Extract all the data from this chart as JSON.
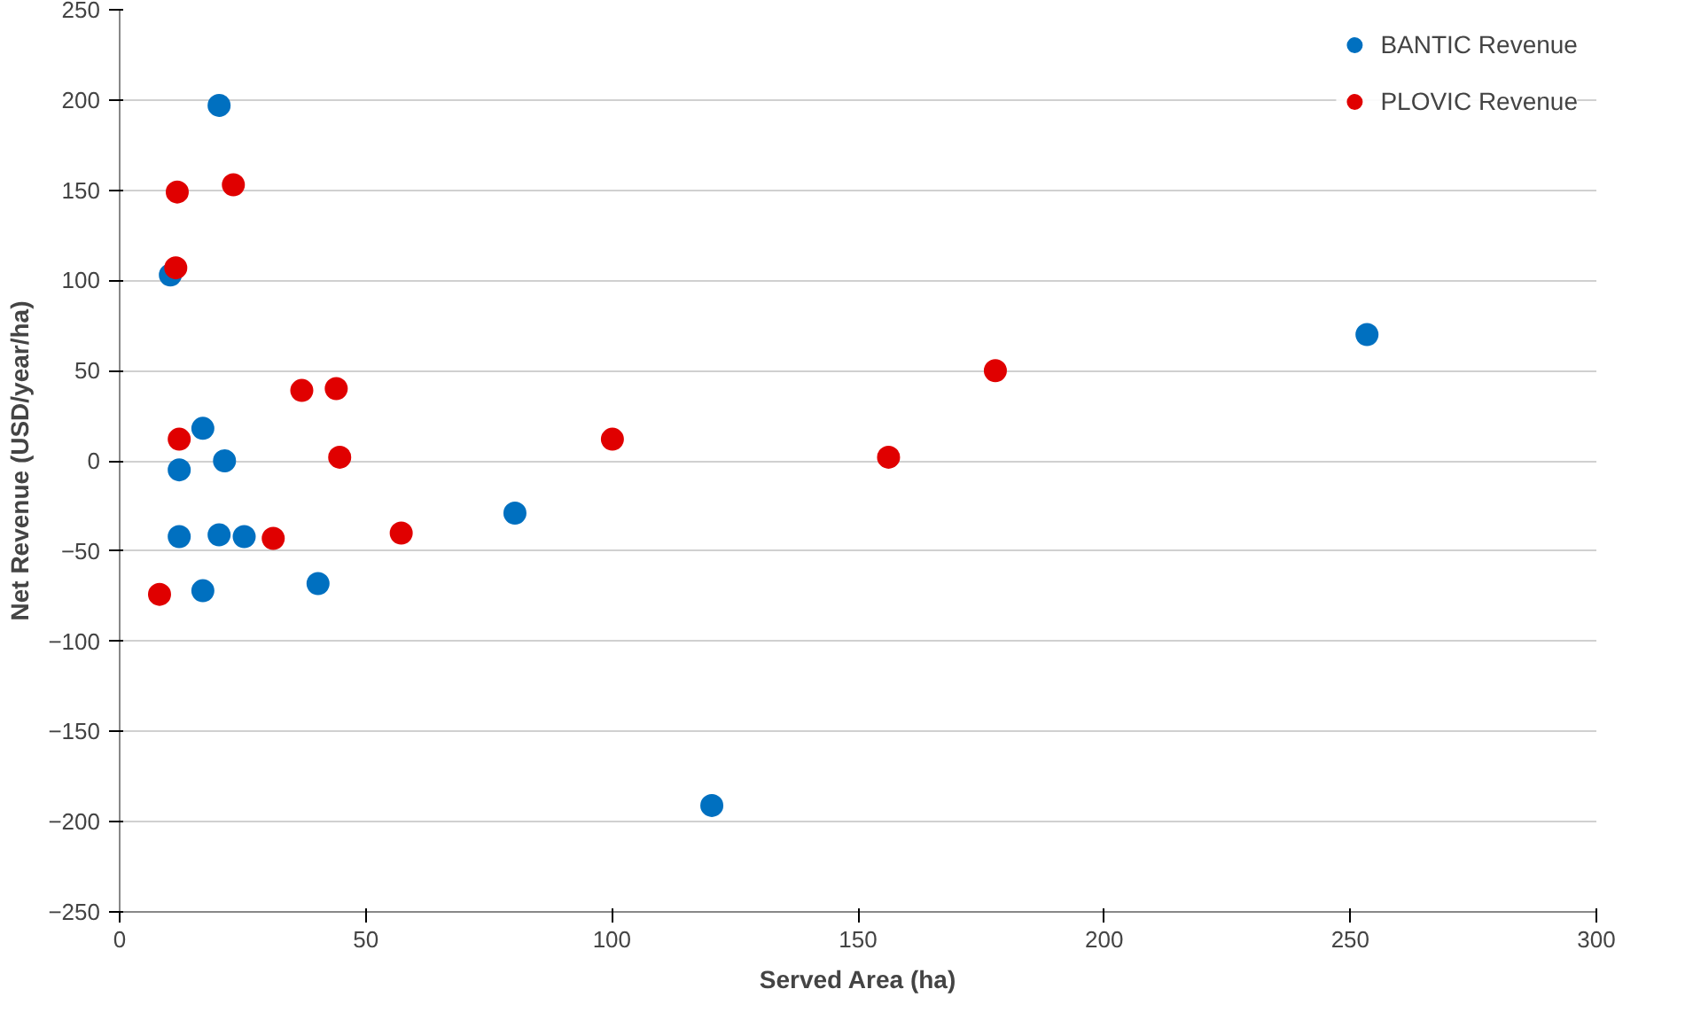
{
  "chart_data": {
    "type": "scatter",
    "xlabel": "Served Area (ha)",
    "ylabel": "Net Revenue (USD/year/ha)",
    "xlim": [
      0,
      300
    ],
    "xticks": [
      0,
      50,
      100,
      150,
      200,
      250,
      300
    ],
    "ylim": [
      -250,
      250
    ],
    "yticks": [
      -250,
      -200,
      -150,
      -100,
      -50,
      0,
      50,
      100,
      150,
      200,
      250
    ],
    "grid": "y",
    "legend": "top right",
    "marker": "circle",
    "series": [
      {
        "name": "BANTIC Revenue",
        "color": "#0070c0",
        "x": [
          10.3,
          20.2,
          16.9,
          12.1,
          21.3,
          12.1,
          20.2,
          25.3,
          16.9,
          40.3,
          80.3,
          120.3,
          253.4
        ],
        "values": [
          103,
          197,
          18,
          -5,
          0,
          -42,
          -41,
          -42,
          -72,
          -68,
          -29,
          -191,
          70
        ]
      },
      {
        "name": "PLOVIC Revenue",
        "color": "#e00000",
        "x": [
          8.1,
          11.7,
          11.4,
          12.1,
          23.1,
          31.2,
          37.0,
          44.0,
          44.7,
          57.2,
          100.1,
          156.2,
          177.9
        ],
        "values": [
          -74,
          149,
          107,
          12,
          153,
          -43,
          39,
          40,
          2,
          -40,
          12,
          2,
          50
        ]
      }
    ]
  }
}
